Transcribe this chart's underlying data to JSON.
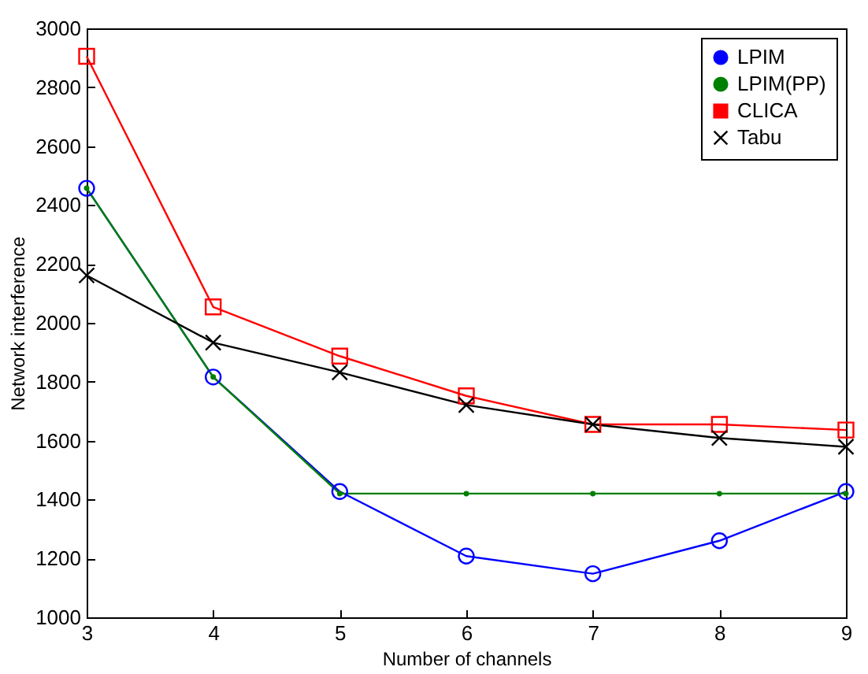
{
  "chart_data": {
    "type": "line",
    "xlabel": "Number of channels",
    "ylabel": "Network interference",
    "x": [
      3,
      4,
      5,
      6,
      7,
      8,
      9
    ],
    "xlim": [
      3,
      9
    ],
    "xticks": [
      3,
      4,
      5,
      6,
      7,
      8,
      9
    ],
    "ylim": [
      1000,
      3000
    ],
    "yticks": [
      1000,
      1200,
      1400,
      1600,
      1800,
      2000,
      2200,
      2400,
      2600,
      2800,
      3000
    ],
    "grid": false,
    "legend": "top right",
    "line_style": "solid",
    "series": [
      {
        "name": "LPIM",
        "color": "#0000ff",
        "marker": "circle",
        "values": [
          2457,
          1816,
          1427,
          1208,
          1148,
          1260,
          1427
        ]
      },
      {
        "name": "LPIM(PP)",
        "color": "#008000",
        "marker": "circle",
        "values": [
          2457,
          1816,
          1420,
          1420,
          1420,
          1420,
          1420
        ]
      },
      {
        "name": "CLICA",
        "color": "#ff0000",
        "marker": "square",
        "values": [
          2905,
          2054,
          1887,
          1752,
          1655,
          1655,
          1636
        ]
      },
      {
        "name": "Tabu",
        "color": "#000000",
        "marker": "cross",
        "values": [
          2161,
          1933,
          1832,
          1721,
          1655,
          1609,
          1579
        ]
      }
    ]
  }
}
